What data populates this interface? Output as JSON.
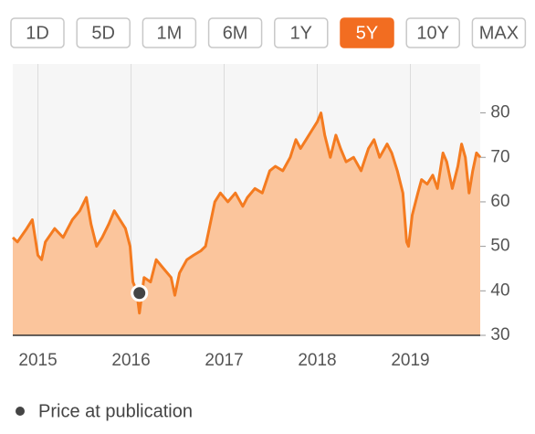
{
  "range_buttons": {
    "labels": [
      "1D",
      "5D",
      "1M",
      "6M",
      "1Y",
      "5Y",
      "10Y",
      "MAX"
    ],
    "active": "5Y"
  },
  "chart_data": {
    "type": "area",
    "x": [
      2014.73,
      2014.78,
      2014.88,
      2014.94,
      2015.0,
      2015.04,
      2015.08,
      2015.18,
      2015.27,
      2015.37,
      2015.45,
      2015.52,
      2015.57,
      2015.63,
      2015.69,
      2015.76,
      2015.82,
      2015.88,
      2015.94,
      2015.99,
      2016.02,
      2016.06,
      2016.09,
      2016.14,
      2016.21,
      2016.27,
      2016.35,
      2016.43,
      2016.47,
      2016.52,
      2016.6,
      2016.67,
      2016.75,
      2016.8,
      2016.84,
      2016.9,
      2016.96,
      2017.04,
      2017.12,
      2017.2,
      2017.25,
      2017.33,
      2017.41,
      2017.49,
      2017.55,
      2017.63,
      2017.71,
      2017.77,
      2017.82,
      2017.88,
      2017.94,
      2018.0,
      2018.04,
      2018.08,
      2018.14,
      2018.2,
      2018.25,
      2018.31,
      2018.39,
      2018.47,
      2018.55,
      2018.61,
      2018.67,
      2018.75,
      2018.8,
      2018.86,
      2018.92,
      2018.96,
      2018.98,
      2019.02,
      2019.08,
      2019.12,
      2019.18,
      2019.24,
      2019.29,
      2019.35,
      2019.39,
      2019.45,
      2019.51,
      2019.55,
      2019.59,
      2019.63,
      2019.67,
      2019.71,
      2019.75
    ],
    "series": [
      {
        "color": "#f47b20",
        "fill": "#fbc59c",
        "values": [
          52,
          51,
          54,
          56,
          48,
          47,
          51,
          54,
          52,
          56,
          58,
          61,
          55,
          50,
          52,
          55,
          58,
          56,
          54,
          50,
          42,
          40,
          35,
          43,
          42,
          47,
          45,
          43,
          39,
          44,
          47,
          48,
          49,
          50,
          54,
          60,
          62,
          60,
          62,
          59,
          61,
          63,
          62,
          67,
          68,
          67,
          70,
          74,
          72,
          74,
          76,
          78,
          80,
          75,
          70,
          75,
          72,
          69,
          70,
          67,
          72,
          74,
          70,
          73,
          71,
          67,
          62,
          51,
          50,
          57,
          62,
          65,
          64,
          66,
          63,
          71,
          69,
          63,
          68,
          73,
          70,
          62,
          67,
          71,
          70
        ]
      }
    ],
    "xlim": [
      2014.73,
      2019.75
    ],
    "ylim": [
      30,
      91
    ],
    "xticks": [
      2015,
      2016,
      2017,
      2018,
      2019
    ],
    "yticks": [
      30,
      40,
      50,
      60,
      70,
      80
    ],
    "grid": true,
    "marker": {
      "x": 2016.09,
      "y": 39.5,
      "label": "Price at publication",
      "color": "#444444"
    }
  }
}
